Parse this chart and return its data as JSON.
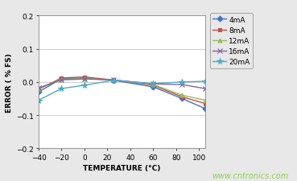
{
  "title": "",
  "xlabel": "TEMPERATURE (°C)",
  "ylabel": "ERROR ( % FS)",
  "watermark": "www.cntronics.com",
  "xlim": [
    -40,
    105
  ],
  "ylim": [
    -0.2,
    0.2
  ],
  "xticks": [
    -40,
    -20,
    0,
    20,
    40,
    60,
    80,
    100
  ],
  "yticks": [
    -0.2,
    -0.1,
    0.0,
    0.1,
    0.2
  ],
  "background_color": "#e8e8e8",
  "plot_bg_color": "#ffffff",
  "series": [
    {
      "label": "4mA",
      "color": "#4472c4",
      "marker": "D",
      "markersize": 3.5,
      "x": [
        -40,
        -20,
        0,
        25,
        60,
        85,
        105
      ],
      "y": [
        -0.03,
        0.01,
        0.012,
        0.005,
        -0.015,
        -0.05,
        -0.08
      ]
    },
    {
      "label": "8mA",
      "color": "#c0504d",
      "marker": "s",
      "markersize": 3.5,
      "x": [
        -40,
        -20,
        0,
        25,
        60,
        85,
        105
      ],
      "y": [
        -0.022,
        0.012,
        0.015,
        0.006,
        -0.01,
        -0.045,
        -0.065
      ]
    },
    {
      "label": "12mA",
      "color": "#9bbb59",
      "marker": "^",
      "markersize": 3.5,
      "x": [
        -40,
        -20,
        0,
        25,
        60,
        85,
        105
      ],
      "y": [
        -0.02,
        0.008,
        0.01,
        0.006,
        -0.008,
        -0.04,
        -0.055
      ]
    },
    {
      "label": "16mA",
      "color": "#8064a2",
      "marker": "x",
      "markersize": 4.5,
      "x": [
        -40,
        -20,
        0,
        25,
        60,
        85,
        105
      ],
      "y": [
        -0.018,
        0.006,
        0.009,
        0.006,
        -0.006,
        -0.008,
        -0.02
      ]
    },
    {
      "label": "20mA",
      "color": "#4bacc6",
      "marker": "*",
      "markersize": 5.5,
      "x": [
        -40,
        -20,
        0,
        25,
        60,
        85,
        105
      ],
      "y": [
        -0.055,
        -0.02,
        -0.01,
        0.005,
        -0.005,
        0.0,
        0.002
      ]
    }
  ]
}
